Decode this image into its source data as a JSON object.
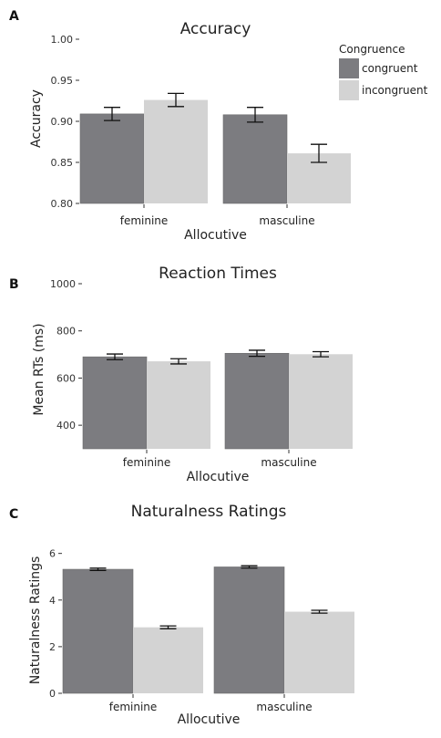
{
  "colors": {
    "congruent": "#7c7c80",
    "incongruent": "#d3d3d3",
    "bar_outline": "#6a6a6a",
    "errorbar": "#111111"
  },
  "legend": {
    "title": "Congruence",
    "items": [
      "congruent",
      "incongruent"
    ]
  },
  "chart_data": [
    {
      "panel": "A",
      "type": "bar",
      "title": "Accuracy",
      "xlabel": "Allocutive",
      "ylabel": "Accuracy",
      "categories": [
        "feminine",
        "masculine"
      ],
      "series": [
        {
          "name": "congruent",
          "values": [
            0.909,
            0.908
          ],
          "err": [
            0.008,
            0.009
          ]
        },
        {
          "name": "incongruent",
          "values": [
            0.926,
            0.861
          ],
          "err": [
            0.008,
            0.011
          ]
        }
      ],
      "ylim": [
        0.8,
        1.0
      ],
      "yticks": [
        "0.80",
        "0.85",
        "0.90",
        "0.95",
        "1.00"
      ],
      "ytick_values": [
        0.8,
        0.85,
        0.9,
        0.95,
        1.0
      ],
      "grid": false,
      "legend": "top-right"
    },
    {
      "panel": "B",
      "type": "bar",
      "title": "Reaction Times",
      "xlabel": "Allocutive",
      "ylabel": "Mean RTs (ms)",
      "categories": [
        "feminine",
        "masculine"
      ],
      "series": [
        {
          "name": "congruent",
          "values": [
            690,
            705
          ],
          "err": [
            12,
            13
          ]
        },
        {
          "name": "incongruent",
          "values": [
            671,
            701
          ],
          "err": [
            11,
            11
          ]
        }
      ],
      "ylim": [
        300,
        1000
      ],
      "yticks": [
        "400",
        "600",
        "800",
        "1000"
      ],
      "ytick_values": [
        400,
        600,
        800,
        1000
      ],
      "grid": false
    },
    {
      "panel": "C",
      "type": "bar",
      "title": "Naturalness Ratings",
      "xlabel": "Allocutive",
      "ylabel": "Naturalness Ratings",
      "categories": [
        "feminine",
        "masculine"
      ],
      "series": [
        {
          "name": "congruent",
          "values": [
            5.32,
            5.42
          ],
          "err": [
            0.05,
            0.05
          ]
        },
        {
          "name": "incongruent",
          "values": [
            2.83,
            3.5
          ],
          "err": [
            0.06,
            0.06
          ]
        }
      ],
      "ylim": [
        0,
        6.3
      ],
      "yticks": [
        "0",
        "2",
        "4",
        "6"
      ],
      "ytick_values": [
        0,
        2,
        4,
        6
      ],
      "grid": false
    }
  ]
}
